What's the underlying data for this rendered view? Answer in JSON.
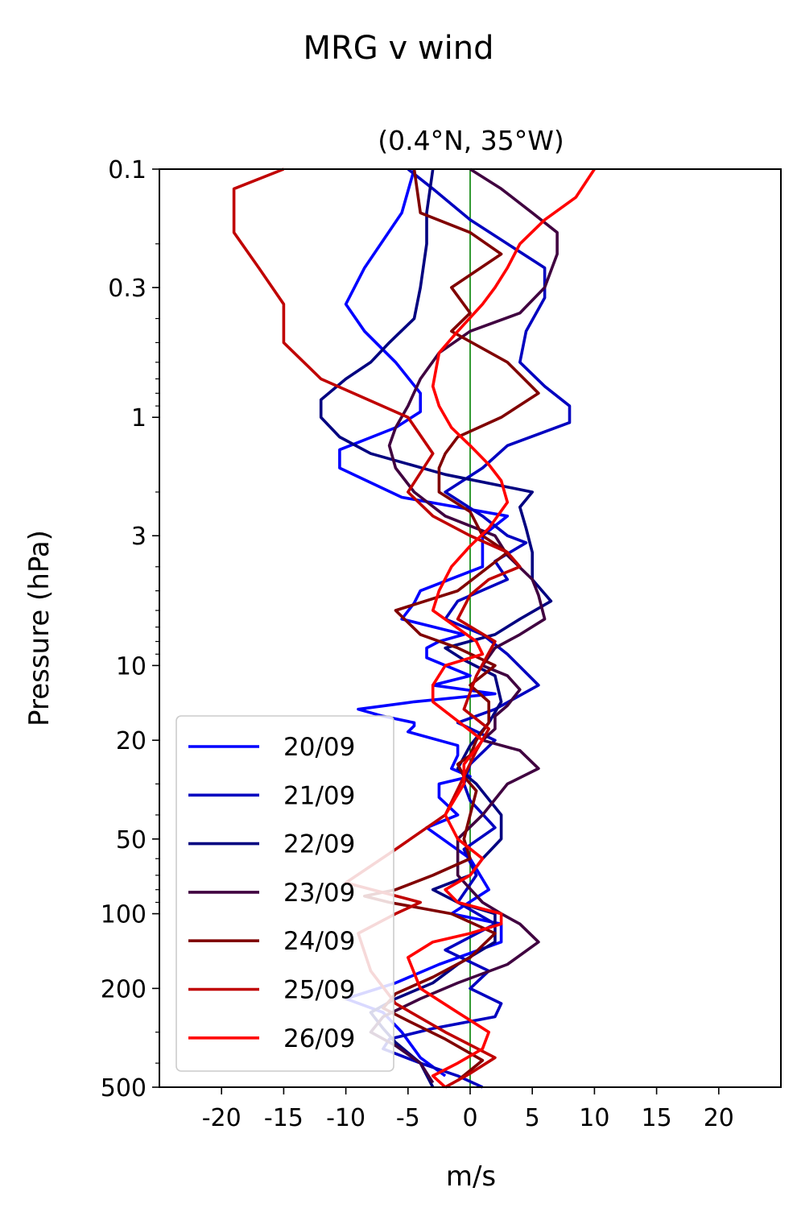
{
  "chart_data": {
    "type": "line",
    "suptitle": "MRG v wind",
    "title": "(0.4°N, 35°W)",
    "xlabel": "m/s",
    "ylabel": "Pressure (hPa)",
    "xlim": [
      -25,
      25
    ],
    "ylim": [
      500,
      0.1
    ],
    "yscale": "log",
    "y_inverted": true,
    "grid": false,
    "legend_position": "lower-left",
    "zero_line_color": "#008000",
    "x_ticks": [
      -20,
      -15,
      -10,
      -5,
      0,
      5,
      10,
      15,
      20
    ],
    "x_tick_labels": [
      "-20",
      "-15",
      "-10",
      "-5",
      "0",
      "5",
      "10",
      "15",
      "20"
    ],
    "y_ticks": [
      0.1,
      0.3,
      1,
      3,
      10,
      20,
      50,
      100,
      200,
      500
    ],
    "y_tick_labels": [
      "0.1",
      "0.3",
      "1",
      "3",
      "10",
      "20",
      "50",
      "100",
      "200",
      "500"
    ],
    "series": [
      {
        "name": "20/09",
        "color": "#0000ff",
        "v": [
          -4.5,
          -5.5,
          -8.5,
          -10.0,
          -8.5,
          -6.0,
          -4.0,
          -4.0,
          -6.0,
          -10.5,
          -10.5,
          -5.5,
          3.0,
          1.0,
          1.0,
          1.0,
          -4.0,
          -4.5,
          -5.5,
          -0.5,
          -2.5,
          -3.5,
          -3.5,
          0.0,
          -3.0,
          2.0,
          -4.5,
          -9.0,
          -7.0,
          -4.5,
          -4.5,
          -5.0,
          -1.0,
          -1.0,
          -1.5,
          0.0,
          -2.5,
          -2.5,
          -1.0,
          -3.5,
          0.0,
          1.5,
          -1.5,
          2.5,
          2.5,
          -2.5,
          -6.0,
          -10.0,
          -7.0,
          -5.5,
          -4.0,
          -2.0
        ],
        "p": [
          0.1,
          0.15,
          0.25,
          0.35,
          0.45,
          0.6,
          0.8,
          0.95,
          1.1,
          1.35,
          1.6,
          2.1,
          2.5,
          3.0,
          3.5,
          4.0,
          5.0,
          5.6,
          6.5,
          7.5,
          8.0,
          8.5,
          9.3,
          11.0,
          12.0,
          13.0,
          14.0,
          15.0,
          16.0,
          17.0,
          17.5,
          18.5,
          21.0,
          23.0,
          26.0,
          28.0,
          30.0,
          34.0,
          40.0,
          45.0,
          60.0,
          80.0,
          100.0,
          110.0,
          130.0,
          160.0,
          190.0,
          220.0,
          250.0,
          300.0,
          380.0,
          450.0
        ]
      },
      {
        "name": "21/09",
        "color": "#0000c0",
        "v": [
          -5.0,
          -3.0,
          0.0,
          3.0,
          6.0,
          6.0,
          4.5,
          4.0,
          6.0,
          8.0,
          8.0,
          3.0,
          1.0,
          -2.0,
          1.0,
          3.0,
          4.5,
          2.0,
          3.0,
          -1.0,
          -2.0,
          1.0,
          3.0,
          5.5,
          2.0,
          -1.0,
          2.0,
          0.0,
          -0.5,
          0.0,
          2.0,
          -0.5,
          0.5,
          -1.0,
          2.0,
          -2.0,
          1.5,
          0.0,
          2.5,
          2.0,
          -3.0,
          -6.5,
          -7.0,
          -4.0,
          -1.0,
          1.0
        ],
        "p": [
          0.1,
          0.12,
          0.16,
          0.2,
          0.25,
          0.33,
          0.45,
          0.6,
          0.75,
          0.9,
          1.05,
          1.3,
          1.6,
          2.0,
          2.5,
          3.0,
          3.2,
          3.8,
          4.5,
          5.5,
          6.5,
          7.5,
          9.0,
          12.0,
          15.0,
          17.0,
          20.0,
          25.0,
          30.0,
          35.0,
          45.0,
          55.0,
          70.0,
          90.0,
          110.0,
          140.0,
          170.0,
          200.0,
          230.0,
          260.0,
          290.0,
          320.0,
          350.0,
          400.0,
          450.0,
          500.0
        ]
      },
      {
        "name": "22/09",
        "color": "#000080",
        "v": [
          -3.0,
          -3.5,
          -3.5,
          -4.0,
          -4.5,
          -6.5,
          -8.0,
          -10.0,
          -12.0,
          -12.0,
          -10.5,
          -8.0,
          -2.0,
          5.0,
          4.0,
          4.5,
          5.0,
          5.0,
          6.5,
          4.0,
          2.0,
          -2.0,
          -0.5,
          2.0,
          2.5,
          1.5,
          0.0,
          -1.0,
          0.5,
          2.5,
          2.5,
          1.0,
          0.0,
          -3.0,
          -1.0,
          2.0,
          2.0,
          -1.0,
          -3.0,
          -6.0,
          -8.0,
          -7.0,
          -6.0,
          -4.0,
          -3.0
        ],
        "p": [
          0.1,
          0.15,
          0.2,
          0.3,
          0.4,
          0.5,
          0.6,
          0.7,
          0.85,
          1.0,
          1.2,
          1.4,
          1.7,
          2.0,
          2.3,
          2.8,
          3.5,
          4.5,
          5.5,
          6.5,
          7.5,
          8.5,
          9.5,
          11.0,
          14.0,
          17.0,
          21.0,
          26.0,
          30.0,
          40.0,
          50.0,
          60.0,
          70.0,
          80.0,
          90.0,
          100.0,
          130.0,
          160.0,
          190.0,
          220.0,
          250.0,
          290.0,
          330.0,
          400.0,
          500.0
        ]
      },
      {
        "name": "23/09",
        "color": "#400040",
        "v": [
          0.0,
          2.5,
          5.0,
          7.0,
          7.0,
          6.0,
          4.0,
          0.0,
          -2.5,
          -4.0,
          -5.0,
          -6.0,
          -6.5,
          -6.0,
          -4.5,
          -2.0,
          2.0,
          3.0,
          5.0,
          5.5,
          6.0,
          4.0,
          2.0,
          1.0,
          3.0,
          4.0,
          3.0,
          2.0,
          2.0,
          1.0,
          4.0,
          5.5,
          3.0,
          1.0,
          -1.0,
          -1.0,
          1.0,
          2.5,
          4.0,
          5.5,
          3.0,
          -1.0,
          -4.0,
          -7.0,
          -8.0,
          -6.0,
          -4.0,
          -3.0
        ],
        "p": [
          0.1,
          0.12,
          0.15,
          0.18,
          0.22,
          0.3,
          0.38,
          0.45,
          0.55,
          0.7,
          0.9,
          1.1,
          1.3,
          1.6,
          2.0,
          2.5,
          3.0,
          3.6,
          4.5,
          5.2,
          6.5,
          7.5,
          8.5,
          10.0,
          11.0,
          12.5,
          14.5,
          16.0,
          18.0,
          20.0,
          22.0,
          26.0,
          30.0,
          40.0,
          50.0,
          70.0,
          90.0,
          100.0,
          110.0,
          130.0,
          160.0,
          190.0,
          220.0,
          260.0,
          300.0,
          340.0,
          400.0,
          480.0
        ]
      },
      {
        "name": "24/09",
        "color": "#800000",
        "v": [
          -4.5,
          -4.0,
          0.0,
          2.5,
          -1.5,
          0.0,
          -1.5,
          3.0,
          5.5,
          2.5,
          -1.0,
          -2.0,
          -2.5,
          -2.5,
          0.0,
          1.0,
          3.0,
          -1.0,
          -6.0,
          -4.0,
          -1.0,
          2.0,
          0.0,
          1.5,
          1.5,
          0.5,
          0.0,
          -1.0,
          -0.5,
          0.5,
          0.0,
          -0.5,
          0.0,
          -3.0,
          -6.0,
          -8.5,
          -6.5,
          -1.5,
          2.0,
          0.0,
          -3.0,
          -6.0,
          -7.0,
          -5.0,
          -2.0,
          1.0,
          -1.0
        ],
        "p": [
          0.1,
          0.15,
          0.18,
          0.22,
          0.3,
          0.38,
          0.45,
          0.6,
          0.8,
          1.0,
          1.2,
          1.4,
          1.6,
          2.0,
          2.4,
          3.0,
          3.5,
          5.0,
          6.0,
          7.5,
          8.5,
          10.0,
          12.0,
          14.0,
          17.0,
          20.0,
          23.0,
          25.0,
          28.0,
          32.0,
          40.0,
          50.0,
          60.0,
          70.0,
          80.0,
          85.0,
          90.0,
          100.0,
          120.0,
          150.0,
          180.0,
          210.0,
          240.0,
          270.0,
          320.0,
          390.0,
          470.0
        ]
      },
      {
        "name": "25/09",
        "color": "#c00000",
        "v": [
          -15.0,
          -19.0,
          -19.0,
          -17.0,
          -15.0,
          -15.0,
          -12.0,
          -5.0,
          -3.0,
          -5.0,
          -3.0,
          0.0,
          3.0,
          4.0,
          1.5,
          0.0,
          -1.0,
          2.0,
          0.5,
          -0.5,
          1.5,
          0.5,
          -0.5,
          -2.0,
          -6.0,
          -10.0,
          -4.0,
          -6.0,
          -9.0,
          -8.0,
          -6.0,
          -2.0,
          2.0,
          0.0,
          -2.0
        ],
        "p": [
          0.1,
          0.12,
          0.18,
          0.25,
          0.35,
          0.5,
          0.7,
          1.0,
          1.4,
          2.0,
          2.5,
          3.0,
          3.5,
          4.0,
          4.5,
          5.2,
          6.5,
          8.0,
          11.0,
          15.0,
          18.0,
          22.0,
          28.0,
          40.0,
          55.0,
          75.0,
          90.0,
          100.0,
          120.0,
          170.0,
          230.0,
          300.0,
          380.0,
          440.0,
          500.0
        ]
      },
      {
        "name": "26/09",
        "color": "#ff0000",
        "v": [
          10.0,
          8.5,
          6.0,
          4.0,
          3.0,
          2.0,
          1.0,
          -1.0,
          -2.5,
          -3.0,
          -2.5,
          -1.5,
          0.0,
          1.5,
          2.5,
          3.0,
          1.5,
          0.0,
          -1.5,
          -2.5,
          -3.0,
          0.5,
          1.0,
          -2.0,
          -3.0,
          -3.0,
          -1.5,
          1.0,
          -0.5,
          -0.5,
          -2.0,
          -1.0,
          1.0,
          0.0,
          -2.0,
          -1.0,
          2.5,
          2.5,
          0.0,
          -3.0,
          -5.0,
          -4.0,
          -1.0,
          1.5,
          1.0,
          -1.0,
          -3.0,
          -2.0
        ],
        "p": [
          0.1,
          0.13,
          0.16,
          0.2,
          0.25,
          0.3,
          0.35,
          0.45,
          0.55,
          0.75,
          0.9,
          1.1,
          1.3,
          1.55,
          1.8,
          2.2,
          2.8,
          3.3,
          4.0,
          5.0,
          6.0,
          8.0,
          9.0,
          10.0,
          12.0,
          14.0,
          16.0,
          20.0,
          25.0,
          30.0,
          40.0,
          50.0,
          60.0,
          70.0,
          80.0,
          90.0,
          100.0,
          110.0,
          120.0,
          130.0,
          150.0,
          200.0,
          250.0,
          300.0,
          350.0,
          400.0,
          450.0,
          500.0
        ]
      }
    ]
  }
}
